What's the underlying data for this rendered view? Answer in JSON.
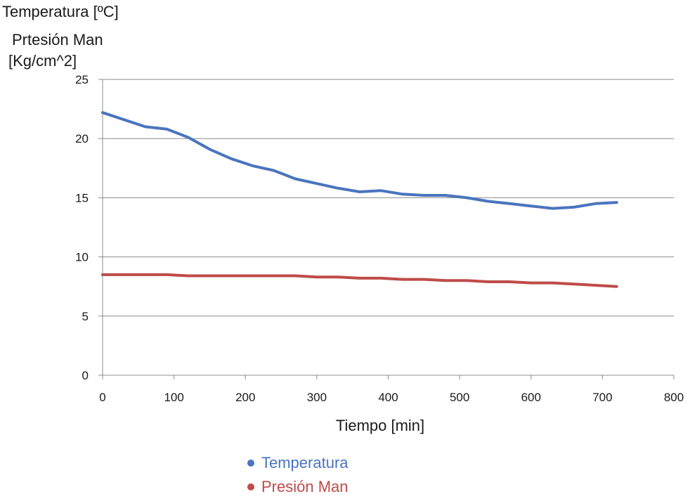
{
  "chart_data": {
    "type": "line",
    "title": "",
    "ylabel_lines": [
      "Temperatura [ºC]",
      "Prtesión Man",
      "[Kg/cm^2]"
    ],
    "xlabel": "Tiempo [min]",
    "xlim": [
      0,
      800
    ],
    "ylim": [
      0,
      25
    ],
    "xticks": [
      0,
      100,
      200,
      300,
      400,
      500,
      600,
      700,
      800
    ],
    "yticks": [
      0,
      5,
      10,
      15,
      20,
      25
    ],
    "grid": "horizontal",
    "legend_position": "bottom",
    "series": [
      {
        "name": "Temperatura",
        "color": "#4a74be",
        "x": [
          0,
          30,
          60,
          90,
          120,
          150,
          180,
          210,
          240,
          270,
          300,
          330,
          360,
          390,
          420,
          450,
          480,
          510,
          540,
          570,
          600,
          630,
          660,
          690,
          720
        ],
        "values": [
          22.2,
          21.6,
          21.0,
          20.8,
          20.1,
          19.1,
          18.3,
          17.7,
          17.3,
          16.6,
          16.2,
          15.8,
          15.5,
          15.6,
          15.3,
          15.2,
          15.2,
          15.0,
          14.7,
          14.5,
          14.3,
          14.1,
          14.2,
          14.5,
          14.6
        ]
      },
      {
        "name": "Presión Man",
        "color": "#be4b48",
        "x": [
          0,
          30,
          60,
          90,
          120,
          150,
          180,
          210,
          240,
          270,
          300,
          330,
          360,
          390,
          420,
          450,
          480,
          510,
          540,
          570,
          600,
          630,
          660,
          690,
          720
        ],
        "values": [
          8.5,
          8.5,
          8.5,
          8.5,
          8.4,
          8.4,
          8.4,
          8.4,
          8.4,
          8.4,
          8.3,
          8.3,
          8.2,
          8.2,
          8.1,
          8.1,
          8.0,
          8.0,
          7.9,
          7.9,
          7.8,
          7.8,
          7.7,
          7.6,
          7.5
        ]
      }
    ]
  }
}
